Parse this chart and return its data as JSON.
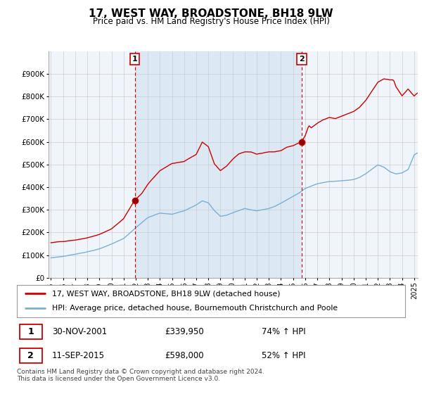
{
  "title": "17, WEST WAY, BROADSTONE, BH18 9LW",
  "subtitle": "Price paid vs. HM Land Registry's House Price Index (HPI)",
  "legend_line1": "17, WEST WAY, BROADSTONE, BH18 9LW (detached house)",
  "legend_line2": "HPI: Average price, detached house, Bournemouth Christchurch and Poole",
  "annotation1_label": "1",
  "annotation1_date": "30-NOV-2001",
  "annotation1_price": "£339,950",
  "annotation1_hpi": "74% ↑ HPI",
  "annotation2_label": "2",
  "annotation2_date": "11-SEP-2015",
  "annotation2_price": "£598,000",
  "annotation2_hpi": "52% ↑ HPI",
  "footer": "Contains HM Land Registry data © Crown copyright and database right 2024.\nThis data is licensed under the Open Government Licence v3.0.",
  "sale1_x": 2001.917,
  "sale1_y": 339950,
  "sale2_x": 2015.708,
  "sale2_y": 598000,
  "ylim": [
    0,
    1000000
  ],
  "xlim": [
    1994.8,
    2025.3
  ],
  "red_color": "#cc0000",
  "blue_color": "#7bafd4",
  "shade_color": "#dce9f5",
  "vline_color": "#cc0000",
  "grid_color": "#cccccc",
  "background_color": "#ffffff",
  "chart_bg": "#f0f5fb"
}
